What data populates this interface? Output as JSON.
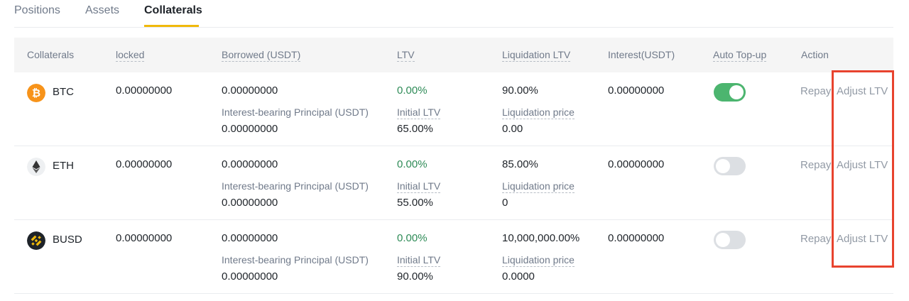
{
  "tabs": [
    {
      "label": "Positions"
    },
    {
      "label": "Assets"
    },
    {
      "label": "Collaterals"
    }
  ],
  "colors": {
    "accent": "#f0b90b",
    "green": "#2e8b57",
    "toggle_on": "#4cb56f",
    "highlight": "#e8432e"
  },
  "table": {
    "headers": {
      "collaterals": "Collaterals",
      "locked": "locked",
      "borrowed": "Borrowed (USDT)",
      "ltv": "LTV",
      "liq_ltv": "Liquidation LTV",
      "interest": "Interest(USDT)",
      "auto_topup": "Auto Top-up",
      "action": "Action"
    },
    "rows": [
      {
        "coin": "BTC",
        "icon": "bitcoin-icon",
        "locked": "0.00000000",
        "borrowed": "0.00000000",
        "principal_label": "Interest-bearing Principal (USDT)",
        "principal": "0.00000000",
        "ltv": "0.00%",
        "initial_ltv_label": "Initial LTV",
        "initial_ltv": "65.00%",
        "liq_ltv": "90.00%",
        "liq_price_label": "Liquidation price",
        "liq_price": "0.00",
        "interest": "0.00000000",
        "auto_topup": true,
        "repay": "Repay",
        "adjust": "Adjust LTV"
      },
      {
        "coin": "ETH",
        "icon": "ethereum-icon",
        "locked": "0.00000000",
        "borrowed": "0.00000000",
        "principal_label": "Interest-bearing Principal (USDT)",
        "principal": "0.00000000",
        "ltv": "0.00%",
        "initial_ltv_label": "Initial LTV",
        "initial_ltv": "55.00%",
        "liq_ltv": "85.00%",
        "liq_price_label": "Liquidation price",
        "liq_price": "0",
        "interest": "0.00000000",
        "auto_topup": false,
        "repay": "Repay",
        "adjust": "Adjust LTV"
      },
      {
        "coin": "BUSD",
        "icon": "busd-icon",
        "locked": "0.00000000",
        "borrowed": "0.00000000",
        "principal_label": "Interest-bearing Principal (USDT)",
        "principal": "0.00000000",
        "ltv": "0.00%",
        "initial_ltv_label": "Initial LTV",
        "initial_ltv": "90.00%",
        "liq_ltv": "10,000,000.00%",
        "liq_price_label": "Liquidation price",
        "liq_price": "0.0000",
        "interest": "0.00000000",
        "auto_topup": false,
        "repay": "Repay",
        "adjust": "Adjust LTV"
      }
    ]
  }
}
